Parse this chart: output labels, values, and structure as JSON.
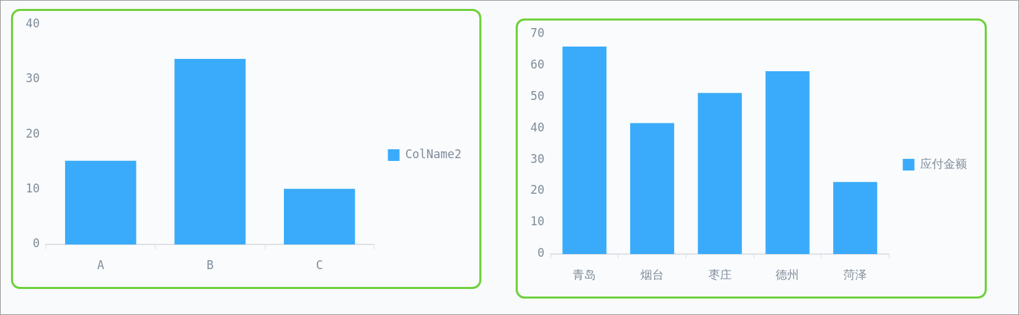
{
  "chart_data": [
    {
      "type": "bar",
      "categories": [
        "A",
        "B",
        "C"
      ],
      "series": [
        {
          "name": "ColName2",
          "color": "#3aabfa",
          "values": [
            15.2,
            33.7,
            10.1
          ]
        }
      ],
      "ylim": [
        0,
        40
      ],
      "yticks": [
        0,
        10,
        20,
        30,
        40
      ],
      "legend": "right"
    },
    {
      "type": "bar",
      "categories": [
        "青岛",
        "烟台",
        "枣庄",
        "德州",
        "菏泽"
      ],
      "series": [
        {
          "name": "应付金额",
          "color": "#3aabfa",
          "values": [
            65.9,
            41.6,
            51.2,
            58.1,
            22.9
          ]
        }
      ],
      "ylim": [
        0,
        70
      ],
      "yticks": [
        0,
        10,
        20,
        30,
        40,
        50,
        60,
        70
      ],
      "legend": "right"
    }
  ]
}
